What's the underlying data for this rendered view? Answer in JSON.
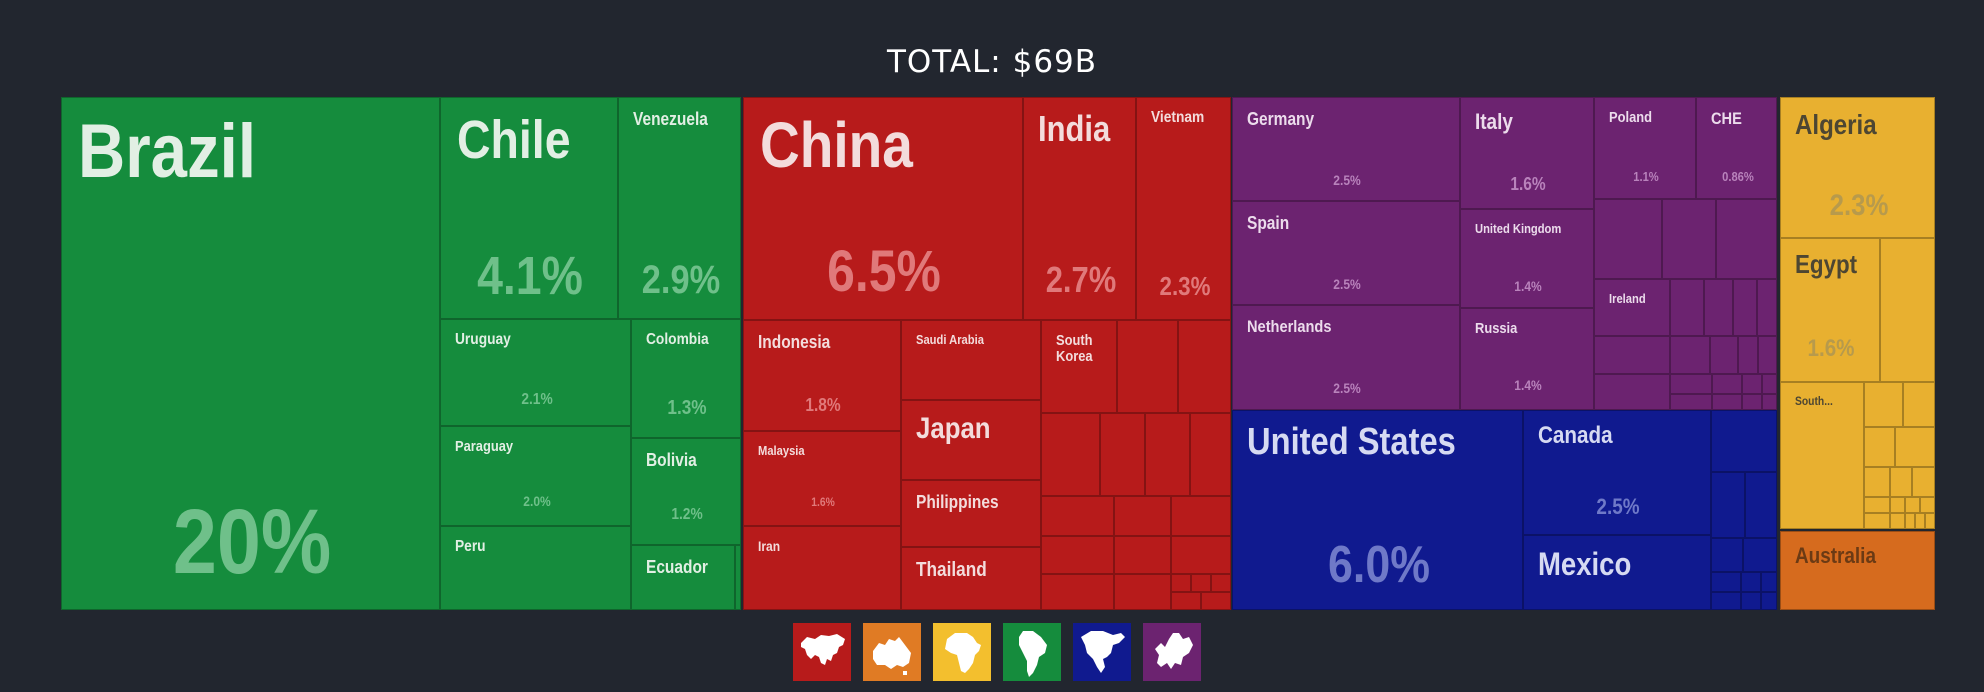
{
  "title": "TOTAL: $69B",
  "chart_data": {
    "type": "treemap",
    "title": "TOTAL: $69B",
    "regions": [
      {
        "name": "South America",
        "color": "#158c3d",
        "text_color": "#e2efe4",
        "pct_color": "#6fc08a",
        "items": [
          {
            "label": "Brazil",
            "value": "20%"
          },
          {
            "label": "Chile",
            "value": "4.1%"
          },
          {
            "label": "Venezuela",
            "value": "2.9%"
          },
          {
            "label": "Uruguay",
            "value": "2.1%"
          },
          {
            "label": "Colombia",
            "value": "1.3%"
          },
          {
            "label": "Paraguay",
            "value": "2.0%"
          },
          {
            "label": "Bolivia",
            "value": "1.2%"
          },
          {
            "label": "Peru",
            "value": ""
          },
          {
            "label": "Ecuador",
            "value": ""
          },
          {
            "label": "",
            "value": ""
          }
        ]
      },
      {
        "name": "Asia",
        "color": "#b71b1b",
        "text_color": "#f3dcdc",
        "pct_color": "#e0797a",
        "items": [
          {
            "label": "China",
            "value": "6.5%"
          },
          {
            "label": "India",
            "value": "2.7%"
          },
          {
            "label": "Vietnam",
            "value": "2.3%"
          },
          {
            "label": "Indonesia",
            "value": "1.8%"
          },
          {
            "label": "Saudi Arabia",
            "value": ""
          },
          {
            "label": "South\nKorea",
            "value": ""
          },
          {
            "label": "Japan",
            "value": ""
          },
          {
            "label": "Malaysia",
            "value": "1.6%"
          },
          {
            "label": "Philippines",
            "value": ""
          },
          {
            "label": "Iran",
            "value": ""
          },
          {
            "label": "Thailand",
            "value": ""
          }
        ]
      },
      {
        "name": "Europe",
        "color": "#6c2370",
        "text_color": "#ecdcec",
        "pct_color": "#b983bc",
        "items": [
          {
            "label": "Germany",
            "value": "2.5%"
          },
          {
            "label": "Italy",
            "value": "1.6%"
          },
          {
            "label": "Poland",
            "value": "1.1%"
          },
          {
            "label": "CHE",
            "value": "0.86%"
          },
          {
            "label": "Spain",
            "value": "2.5%"
          },
          {
            "label": "United Kingdom",
            "value": "1.4%"
          },
          {
            "label": "Ireland",
            "value": ""
          },
          {
            "label": "Netherlands",
            "value": "2.5%"
          },
          {
            "label": "Russia",
            "value": "1.4%"
          }
        ]
      },
      {
        "name": "North America",
        "color": "#101a8f",
        "text_color": "#d6daf2",
        "pct_color": "#6f79c8",
        "items": [
          {
            "label": "United States",
            "value": "6.0%"
          },
          {
            "label": "Canada",
            "value": "2.5%"
          },
          {
            "label": "Mexico",
            "value": ""
          }
        ]
      },
      {
        "name": "Africa",
        "color": "#e8b030",
        "text_color": "#4d4632",
        "pct_color": "#b79a4c",
        "items": [
          {
            "label": "Algeria",
            "value": "2.3%"
          },
          {
            "label": "Egypt",
            "value": "1.6%"
          },
          {
            "label": "South...",
            "value": ""
          }
        ]
      },
      {
        "name": "Oceania",
        "color": "#d66b1e",
        "text_color": "#6b3a14",
        "pct_color": "#a85a20",
        "items": [
          {
            "label": "Australia",
            "value": ""
          }
        ]
      }
    ]
  },
  "legend": [
    {
      "name": "asia-icon",
      "color": "#b71b1b"
    },
    {
      "name": "oceania-icon",
      "color": "#e07b24"
    },
    {
      "name": "africa-icon",
      "color": "#f3bf2e"
    },
    {
      "name": "south-america-icon",
      "color": "#158c3d"
    },
    {
      "name": "north-america-icon",
      "color": "#101a8f"
    },
    {
      "name": "europe-icon",
      "color": "#6c2370"
    }
  ]
}
